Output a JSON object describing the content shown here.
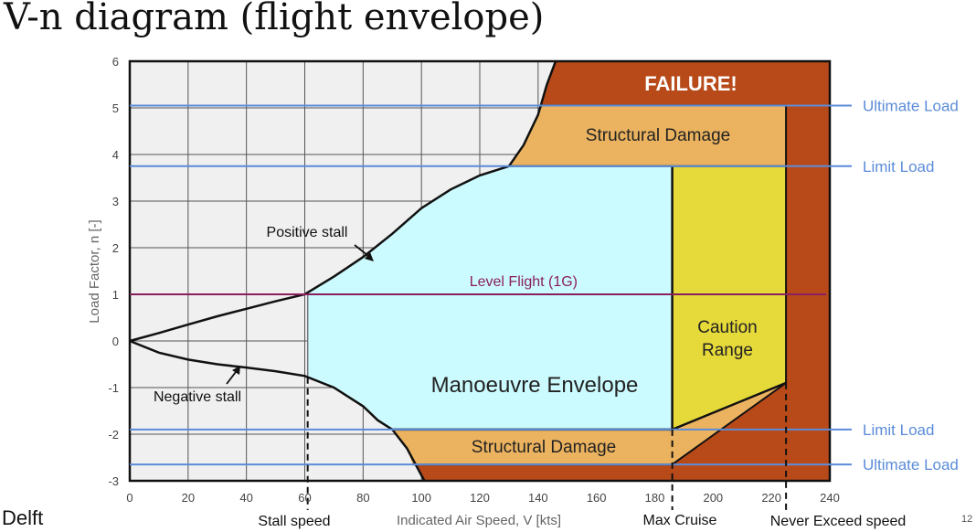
{
  "slide": {
    "title": "V-n diagram (flight envelope)",
    "footer_left": "Delft",
    "page_number": "12"
  },
  "chart_data": {
    "type": "area",
    "title": "",
    "xlabel": "Indicated Air Speed, V [kts]",
    "ylabel": "Load Factor, n [-]",
    "xlim": [
      0,
      240
    ],
    "ylim": [
      -3,
      6
    ],
    "x_ticks": [
      0,
      20,
      40,
      60,
      80,
      100,
      120,
      140,
      160,
      180,
      200,
      220,
      240
    ],
    "y_ticks": [
      -3,
      -2,
      -1,
      0,
      1,
      2,
      3,
      4,
      5,
      6
    ],
    "grid": true,
    "positive_stall_curve": [
      [
        0,
        0
      ],
      [
        10,
        0.17
      ],
      [
        20,
        0.35
      ],
      [
        30,
        0.53
      ],
      [
        40,
        0.69
      ],
      [
        50,
        0.85
      ],
      [
        60,
        1.0
      ],
      [
        70,
        1.38
      ],
      [
        80,
        1.8
      ],
      [
        90,
        2.3
      ],
      [
        100,
        2.85
      ],
      [
        110,
        3.25
      ],
      [
        120,
        3.55
      ],
      [
        130,
        3.75
      ],
      [
        135,
        4.2
      ],
      [
        140,
        4.85
      ],
      [
        143,
        5.5
      ],
      [
        146,
        6.0
      ]
    ],
    "negative_stall_curve": [
      [
        0,
        0
      ],
      [
        10,
        -0.25
      ],
      [
        20,
        -0.4
      ],
      [
        30,
        -0.5
      ],
      [
        40,
        -0.57
      ],
      [
        50,
        -0.65
      ],
      [
        60,
        -0.75
      ],
      [
        70,
        -1.0
      ],
      [
        80,
        -1.4
      ],
      [
        85,
        -1.7
      ],
      [
        90,
        -1.9
      ],
      [
        95,
        -2.3
      ],
      [
        98,
        -2.65
      ],
      [
        101,
        -3.0
      ]
    ],
    "reference_lines": {
      "positive_ultimate": 5.05,
      "positive_limit": 3.75,
      "level_flight": 1.0,
      "negative_limit": -1.9,
      "negative_ultimate": -2.65
    },
    "speeds": {
      "stall": 61,
      "max_cruise": 186,
      "never_exceed": 225
    },
    "regions": [
      {
        "name": "FAILURE!",
        "color": "#b84a19"
      },
      {
        "name": "Structural Damage",
        "color": "#ebb35f",
        "position": "positive"
      },
      {
        "name": "Structural Damage",
        "color": "#ebb35f",
        "position": "negative"
      },
      {
        "name": "Manoeuvre Envelope",
        "color": "#ccfbff"
      },
      {
        "name": "Caution Range",
        "color": "#e6d93a"
      }
    ],
    "annotations": [
      {
        "text": "Positive stall"
      },
      {
        "text": "Negative stall"
      },
      {
        "text": "Level Flight (1G)"
      }
    ],
    "right_labels": [
      "Ultimate Load",
      "Limit Load",
      "Limit Load",
      "Ultimate Load"
    ],
    "bottom_labels": [
      "Stall speed",
      "Max Cruise",
      "Never Exceed speed"
    ],
    "colors": {
      "failure": "#b84a19",
      "structural_damage": "#ebb35f",
      "manoeuvre": "#ccfbff",
      "caution": "#e6d93a",
      "reference_line": "#5b8cd8",
      "level_flight": "#8a1f5e",
      "background": "#f0f0f0",
      "grid": "#555555"
    }
  }
}
